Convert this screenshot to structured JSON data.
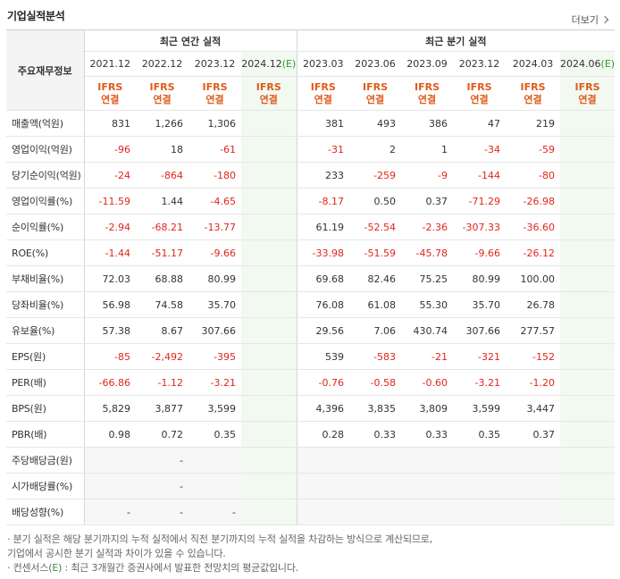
{
  "header": {
    "title": "기업실적분석",
    "more": "더보기"
  },
  "table": {
    "row_head": "주요재무정보",
    "group_annual": "최근 연간 실적",
    "group_quarter": "최근 분기 실적",
    "periods": [
      "2021.12",
      "2022.12",
      "2023.12",
      "2024.12",
      "2023.03",
      "2023.06",
      "2023.09",
      "2023.12",
      "2024.03",
      "2024.06"
    ],
    "est_mark": "(E)",
    "ifrs_line1": "IFRS",
    "ifrs_line2": "연결",
    "rows": [
      {
        "label": "매출액(억원)",
        "values": [
          "831",
          "1,266",
          "1,306",
          "",
          "381",
          "493",
          "386",
          "47",
          "219",
          ""
        ]
      },
      {
        "label": "영업이익(억원)",
        "values": [
          "-96",
          "18",
          "-61",
          "",
          "-31",
          "2",
          "1",
          "-34",
          "-59",
          ""
        ]
      },
      {
        "label": "당기순이익(억원)",
        "values": [
          "-24",
          "-864",
          "-180",
          "",
          "233",
          "-259",
          "-9",
          "-144",
          "-80",
          ""
        ]
      },
      {
        "label": "영업이익률(%)",
        "values": [
          "-11.59",
          "1.44",
          "-4.65",
          "",
          "-8.17",
          "0.50",
          "0.37",
          "-71.29",
          "-26.98",
          ""
        ]
      },
      {
        "label": "순이익률(%)",
        "values": [
          "-2.94",
          "-68.21",
          "-13.77",
          "",
          "61.19",
          "-52.54",
          "-2.36",
          "-307.33",
          "-36.60",
          ""
        ]
      },
      {
        "label": "ROE(%)",
        "values": [
          "-1.44",
          "-51.17",
          "-9.66",
          "",
          "-33.98",
          "-51.59",
          "-45.78",
          "-9.66",
          "-26.12",
          ""
        ]
      },
      {
        "label": "부채비율(%)",
        "values": [
          "72.03",
          "68.88",
          "80.99",
          "",
          "69.68",
          "82.46",
          "75.25",
          "80.99",
          "100.00",
          ""
        ]
      },
      {
        "label": "당좌비율(%)",
        "values": [
          "56.98",
          "74.58",
          "35.70",
          "",
          "76.08",
          "61.08",
          "55.30",
          "35.70",
          "26.78",
          ""
        ]
      },
      {
        "label": "유보율(%)",
        "values": [
          "57.38",
          "8.67",
          "307.66",
          "",
          "29.56",
          "7.06",
          "430.74",
          "307.66",
          "277.57",
          ""
        ]
      },
      {
        "label": "EPS(원)",
        "values": [
          "-85",
          "-2,492",
          "-395",
          "",
          "539",
          "-583",
          "-21",
          "-321",
          "-152",
          ""
        ]
      },
      {
        "label": "PER(배)",
        "values": [
          "-66.86",
          "-1.12",
          "-3.21",
          "",
          "-0.76",
          "-0.58",
          "-0.60",
          "-3.21",
          "-1.20",
          ""
        ]
      },
      {
        "label": "BPS(원)",
        "values": [
          "5,829",
          "3,877",
          "3,599",
          "",
          "4,396",
          "3,835",
          "3,809",
          "3,599",
          "3,447",
          ""
        ]
      },
      {
        "label": "PBR(배)",
        "values": [
          "0.98",
          "0.72",
          "0.35",
          "",
          "0.28",
          "0.33",
          "0.33",
          "0.35",
          "0.37",
          ""
        ]
      },
      {
        "label": "주당배당금(원)",
        "values": [
          "",
          "-",
          "",
          "",
          "",
          "",
          "",
          "",
          "",
          ""
        ]
      },
      {
        "label": "시가배당률(%)",
        "values": [
          "",
          "-",
          "",
          "",
          "",
          "",
          "",
          "",
          "",
          ""
        ]
      },
      {
        "label": "배당성향(%)",
        "values": [
          "-",
          "-",
          "-",
          "",
          "",
          "",
          "",
          "",
          "",
          ""
        ]
      }
    ]
  },
  "notes": {
    "line1": "· 분기 실적은 해당 분기까지의 누적 실적에서 직전 분기까지의 누적 실적을 차감하는 방식으로 계산되므로,",
    "line2": "  기업에서 공시한 분기 실적과 차이가 있을 수 있습니다.",
    "line3_a": "· 컨센서스(",
    "line3_e": "E",
    "line3_b": ") : 최근 3개월간 증권사에서 발표한 전망치의 평균값입니다."
  },
  "colors": {
    "negative": "#e0261b",
    "ifrs": "#e05a1a",
    "estimate_bg": "#f2f9f1",
    "estimate_mark": "#2e9b2e"
  }
}
